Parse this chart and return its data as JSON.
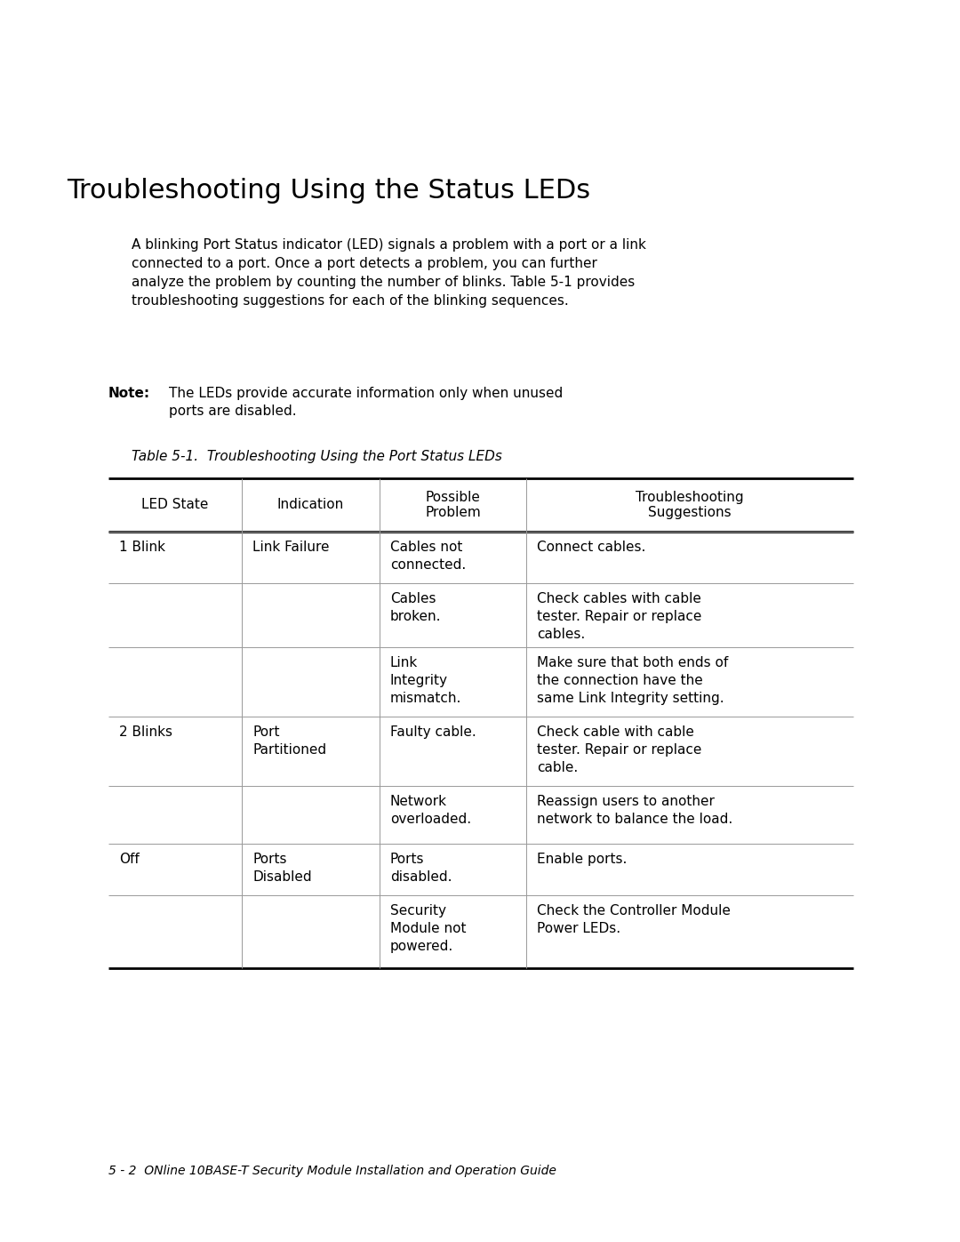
{
  "title": "Troubleshooting Using the Status LEDs",
  "body_text": "A blinking Port Status indicator (LED) signals a problem with a port or a link\nconnected to a port. Once a port detects a problem, you can further\nanalyze the problem by counting the number of blinks. Table 5-1 provides\ntroubleshooting suggestions for each of the blinking sequences.",
  "note_label": "Note:",
  "note_text_line1": "The LEDs provide accurate information only when unused",
  "note_text_line2": "ports are disabled.",
  "table_caption": "Table 5-1.  Troubleshooting Using the Port Status LEDs",
  "col_headers": [
    "LED State",
    "Indication",
    "Possible\nProblem",
    "Troubleshooting\nSuggestions"
  ],
  "rows": [
    [
      "1 Blink",
      "Link Failure",
      "Cables not\nconnected.",
      "Connect cables."
    ],
    [
      "",
      "",
      "Cables\nbroken.",
      "Check cables with cable\ntester. Repair or replace\ncables."
    ],
    [
      "",
      "",
      "Link\nIntegrity\nmismatch.",
      "Make sure that both ends of\nthe connection have the\nsame Link Integrity setting."
    ],
    [
      "2 Blinks",
      "Port\nPartitioned",
      "Faulty cable.",
      "Check cable with cable\ntester. Repair or replace\ncable."
    ],
    [
      "",
      "",
      "Network\noverloaded.",
      "Reassign users to another\nnetwork to balance the load."
    ],
    [
      "Off",
      "Ports\nDisabled",
      "Ports\ndisabled.",
      "Enable ports."
    ],
    [
      "",
      "",
      "Security\nModule not\npowered.",
      "Check the Controller Module\nPower LEDs."
    ]
  ],
  "footer_text": "5 - 2  ONline 10BASE-T Security Module Installation and Operation Guide",
  "bg_color": "#ffffff",
  "text_color": "#000000",
  "line_color_thick": "#000000",
  "line_color_thin": "#999999"
}
